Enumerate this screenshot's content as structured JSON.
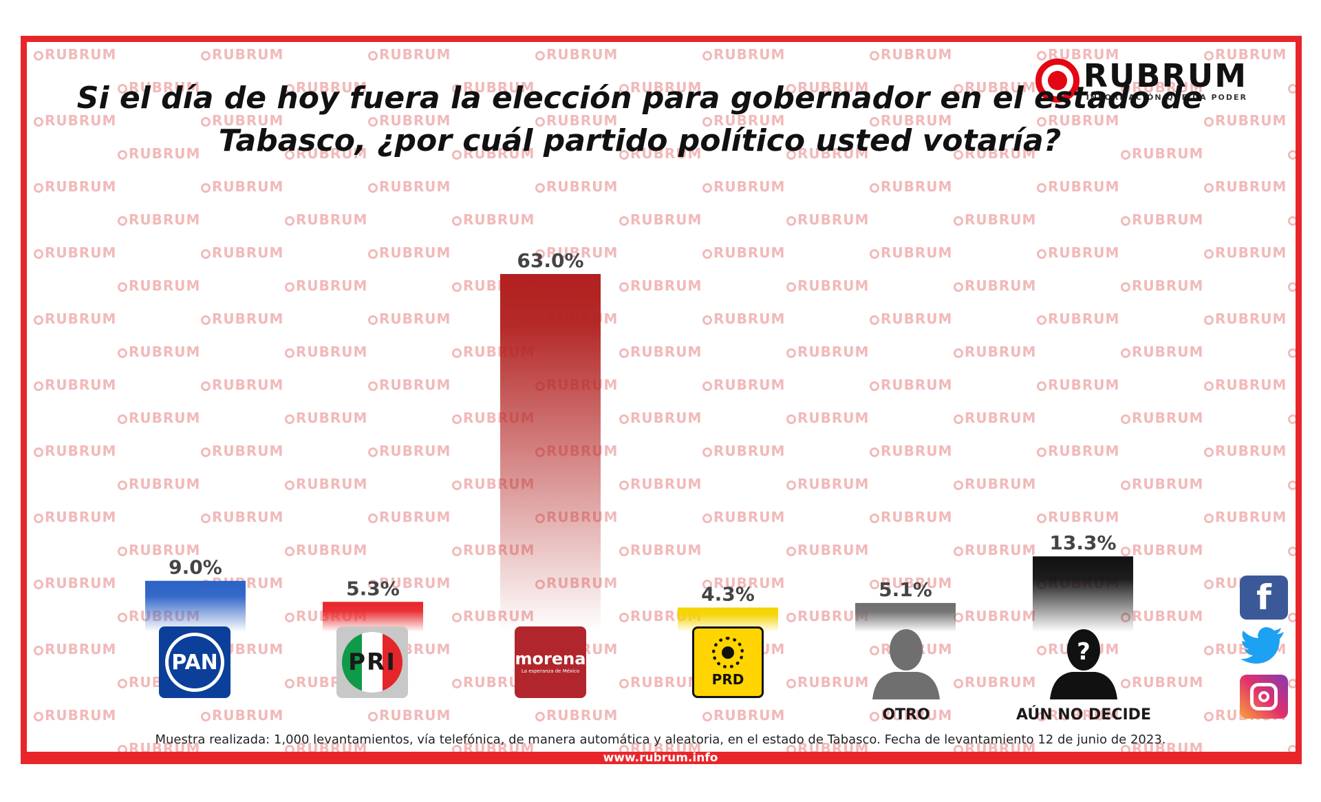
{
  "brand": {
    "name": "RUBRUM",
    "tagline": "INFORMACIÓN QUE DA PODER",
    "watermark": "RUBRUM"
  },
  "title_line1": "Si el día de hoy fuera la elección para gobernador en el estado de",
  "title_line2": "Tabasco, ¿por cuál  partido político usted votaría?",
  "chart_data": {
    "type": "bar",
    "categories": [
      "PAN",
      "PRI",
      "morena",
      "PRD",
      "OTRO",
      "AÚN NO DECIDE"
    ],
    "values": [
      9.0,
      5.3,
      63.0,
      4.3,
      5.1,
      13.3
    ],
    "value_labels": [
      "9.0%",
      "5.3%",
      "63.0%",
      "4.3%",
      "5.1%",
      "13.3%"
    ],
    "colors": [
      "#2b62c6",
      "#e8262a",
      "#b1201f",
      "#f5d400",
      "#6e6e6e",
      "#111111"
    ],
    "title": "Si el día de hoy fuera la elección para gobernador en el estado de Tabasco, ¿por cuál  partido político usted votaría?",
    "xlabel": "",
    "ylabel": "",
    "ylim": [
      0,
      63.0
    ],
    "grid": false,
    "legend": "none"
  },
  "logos": {
    "pan": "PAN",
    "pri": "PRI",
    "morena_name": "morena",
    "morena_sub": "La esperanza de México",
    "prd": "PRD"
  },
  "labels": {
    "otro": "OTRO",
    "aun_no_decide": "AÚN NO DECIDE"
  },
  "icons": [
    "facebook-icon",
    "twitter-icon",
    "instagram-icon",
    "person-silhouette-icon",
    "question-person-icon"
  ],
  "footnote": "Muestra realizada: 1,000 levantamientos, vía telefónica, de manera automática y aleatoria, en el estado de Tabasco. Fecha de levantamiento 12 de junio de 2023.",
  "url": "www.rubrum.info"
}
